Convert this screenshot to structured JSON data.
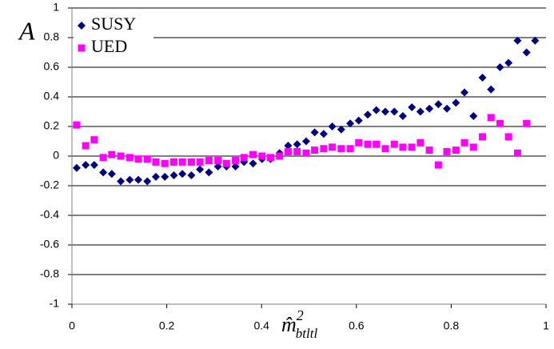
{
  "chart_data": {
    "type": "scatter",
    "y_label": "A",
    "x_label": {
      "base": "m̂",
      "sup": "2",
      "sub": "btltl"
    },
    "x": [
      0.01,
      0.029,
      0.047,
      0.066,
      0.084,
      0.103,
      0.122,
      0.14,
      0.159,
      0.177,
      0.196,
      0.215,
      0.233,
      0.252,
      0.27,
      0.289,
      0.308,
      0.326,
      0.345,
      0.363,
      0.382,
      0.401,
      0.419,
      0.438,
      0.456,
      0.475,
      0.494,
      0.512,
      0.531,
      0.549,
      0.568,
      0.587,
      0.605,
      0.624,
      0.642,
      0.661,
      0.68,
      0.698,
      0.717,
      0.735,
      0.754,
      0.773,
      0.791,
      0.81,
      0.828,
      0.847,
      0.866,
      0.884,
      0.903,
      0.921,
      0.94,
      0.959,
      0.977
    ],
    "series": [
      {
        "name": "SUSY",
        "color": "#000080",
        "marker": "diamond",
        "values": [
          -0.08,
          -0.06,
          -0.06,
          -0.11,
          -0.12,
          -0.17,
          -0.16,
          -0.16,
          -0.17,
          -0.14,
          -0.14,
          -0.13,
          -0.12,
          -0.13,
          -0.09,
          -0.11,
          -0.07,
          -0.07,
          -0.07,
          -0.04,
          -0.05,
          -0.02,
          -0.02,
          0.02,
          0.07,
          0.08,
          0.1,
          0.16,
          0.15,
          0.2,
          0.18,
          0.22,
          0.24,
          0.28,
          0.31,
          0.3,
          0.3,
          0.27,
          0.33,
          0.3,
          0.32,
          0.35,
          0.32,
          0.36,
          0.43,
          0.27,
          0.53,
          0.45,
          0.6,
          0.63,
          0.78,
          0.7,
          0.78
        ]
      },
      {
        "name": "UED",
        "color": "#ff00ff",
        "marker": "square",
        "values": [
          0.21,
          0.07,
          0.11,
          -0.01,
          0.01,
          0,
          -0.01,
          -0.02,
          -0.02,
          -0.04,
          -0.05,
          -0.04,
          -0.04,
          -0.04,
          -0.04,
          -0.03,
          -0.03,
          -0.05,
          -0.03,
          -0.01,
          0.01,
          0,
          -0.01,
          0,
          0.03,
          0.03,
          0.02,
          0.04,
          0.05,
          0.06,
          0.05,
          0.05,
          0.09,
          0.08,
          0.08,
          0.05,
          0.08,
          0.06,
          0.06,
          0.09,
          0.04,
          -0.06,
          0.03,
          0.04,
          0.09,
          0.06,
          0.13,
          0.26,
          0.22,
          0.13,
          0.02,
          0.22,
          null
        ]
      }
    ],
    "xlim": [
      0,
      1
    ],
    "xticks": [
      0,
      0.2,
      0.4,
      0.6,
      0.8,
      1
    ],
    "ylim": [
      -1,
      1
    ],
    "yticks": [
      -1,
      -0.8,
      -0.6,
      -0.4,
      -0.2,
      0,
      0.2,
      0.4,
      0.6,
      0.8,
      1
    ],
    "grid": true,
    "legend": "upper-left"
  }
}
